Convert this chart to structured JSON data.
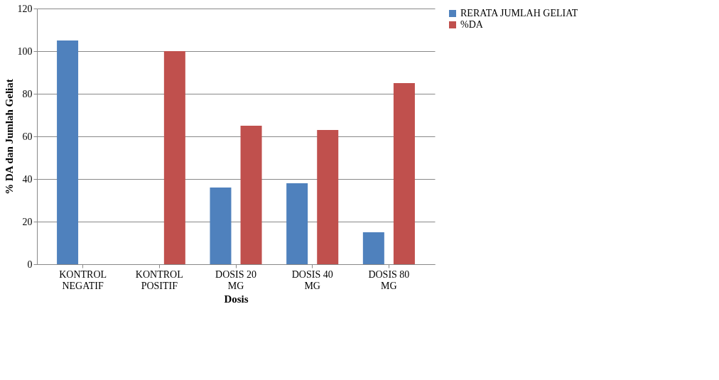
{
  "chart_data": {
    "type": "bar",
    "xlabel": "Dosis",
    "ylabel": "% DA dan Jumlah Geliat",
    "categories": [
      "KONTROL NEGATIF",
      "KONTROL POSITIF",
      "DOSIS 20 MG",
      "DOSIS 40 MG",
      "DOSIS 80 MG"
    ],
    "series": [
      {
        "name": "RERATA JUMLAH GELIAT",
        "color": "#4f81bd",
        "values": [
          105,
          0,
          36,
          38,
          15
        ]
      },
      {
        "name": "%DA",
        "color": "#c0504d",
        "values": [
          0,
          100,
          65,
          63,
          85
        ]
      }
    ],
    "ylim": [
      0,
      120
    ],
    "yticks": [
      0,
      20,
      40,
      60,
      80,
      100,
      120
    ],
    "grid": "y",
    "legend": "right"
  }
}
